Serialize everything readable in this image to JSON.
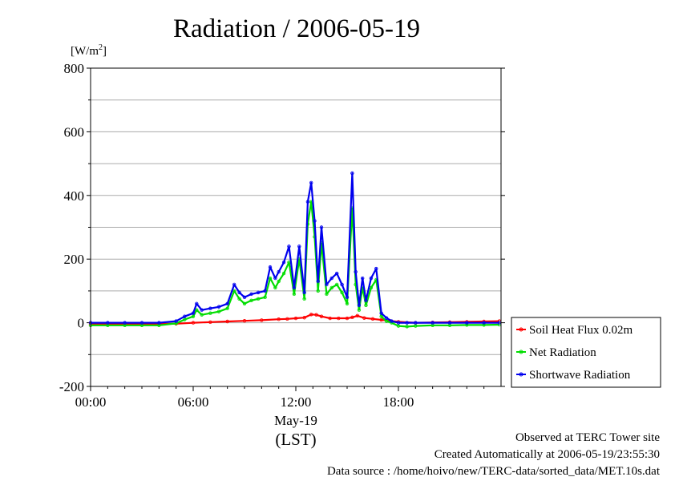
{
  "chart_data": {
    "type": "line",
    "title": "Radiation / 2006-05-19",
    "ylabel_unit": "[W/m",
    "ylabel_unit_sup": "2",
    "ylabel_unit_close": "]",
    "ylim": [
      -200,
      800
    ],
    "yticks": [
      -200,
      0,
      200,
      400,
      600,
      800
    ],
    "ytick_labels": [
      "-200",
      "0",
      "200",
      "400",
      "600",
      "800"
    ],
    "xlim_hours": [
      0,
      24
    ],
    "xticks_hours": [
      0,
      6,
      12,
      18
    ],
    "xtick_labels": [
      "00:00",
      "06:00",
      "12:00",
      "18:00"
    ],
    "x_date_label": "May-19",
    "x_tz_label": "(LST)",
    "grid": true,
    "legend_position": "right",
    "series": [
      {
        "name": "Soil Heat Flux 0.02m",
        "color": "#ff0000",
        "x": [
          0,
          1,
          2,
          3,
          4,
          5,
          6,
          7,
          8,
          9,
          10,
          11,
          11.5,
          12,
          12.5,
          12.9,
          13.2,
          13.5,
          14,
          14.5,
          15,
          15.3,
          15.6,
          16,
          16.5,
          17,
          17.5,
          18,
          19,
          20,
          21,
          22,
          23,
          23.9
        ],
        "y": [
          -5,
          -5,
          -5,
          -5,
          -4,
          -3,
          0,
          2,
          4,
          6,
          8,
          11,
          12,
          14,
          16,
          26,
          25,
          20,
          14,
          14,
          14,
          17,
          22,
          15,
          12,
          9,
          6,
          3,
          0,
          1,
          2,
          3,
          4,
          5
        ]
      },
      {
        "name": "Net Radiation",
        "color": "#00dd00",
        "x": [
          0,
          1,
          2,
          3,
          4,
          5,
          5.5,
          6,
          6.2,
          6.5,
          7,
          7.5,
          8,
          8.4,
          8.7,
          9,
          9.4,
          9.8,
          10.2,
          10.5,
          10.8,
          11,
          11.3,
          11.6,
          11.9,
          12.2,
          12.5,
          12.7,
          12.9,
          13.1,
          13.3,
          13.5,
          13.8,
          14.1,
          14.4,
          14.7,
          15,
          15.3,
          15.5,
          15.7,
          15.9,
          16.1,
          16.4,
          16.7,
          17,
          17.3,
          17.6,
          18,
          18.5,
          19,
          20,
          21,
          22,
          23,
          23.9
        ],
        "y": [
          -8,
          -8,
          -8,
          -8,
          -8,
          -2,
          10,
          20,
          40,
          25,
          30,
          35,
          45,
          100,
          75,
          60,
          70,
          75,
          80,
          140,
          110,
          130,
          155,
          190,
          90,
          200,
          75,
          310,
          380,
          270,
          100,
          250,
          90,
          110,
          120,
          95,
          60,
          360,
          120,
          40,
          110,
          55,
          110,
          135,
          20,
          5,
          0,
          -10,
          -12,
          -10,
          -8,
          -8,
          -7,
          -7,
          -6
        ]
      },
      {
        "name": "Shortwave Radiation",
        "color": "#0000ee",
        "x": [
          0,
          1,
          2,
          3,
          4,
          5,
          5.5,
          6,
          6.2,
          6.5,
          7,
          7.5,
          8,
          8.4,
          8.7,
          9,
          9.4,
          9.8,
          10.2,
          10.5,
          10.8,
          11,
          11.3,
          11.6,
          11.9,
          12.2,
          12.5,
          12.7,
          12.9,
          13.1,
          13.3,
          13.5,
          13.8,
          14.1,
          14.4,
          14.7,
          15,
          15.3,
          15.5,
          15.7,
          15.9,
          16.1,
          16.4,
          16.7,
          17,
          17.3,
          17.6,
          18,
          18.5,
          19,
          20,
          21,
          22,
          23,
          23.9
        ],
        "y": [
          0,
          0,
          0,
          0,
          0,
          5,
          20,
          30,
          60,
          40,
          45,
          50,
          60,
          120,
          95,
          80,
          90,
          95,
          100,
          175,
          140,
          160,
          190,
          240,
          110,
          240,
          95,
          380,
          440,
          320,
          130,
          300,
          120,
          140,
          155,
          120,
          80,
          470,
          160,
          55,
          140,
          70,
          140,
          170,
          30,
          15,
          5,
          0,
          0,
          0,
          0,
          0,
          0,
          0,
          0
        ]
      }
    ]
  },
  "footer": {
    "observed": "Observed at TERC Tower site",
    "created": "Created Automatically at 2006-05-19/23:55:30",
    "source": "Data source : /home/hoivo/new/TERC-data/sorted_data/MET.10s.dat"
  }
}
